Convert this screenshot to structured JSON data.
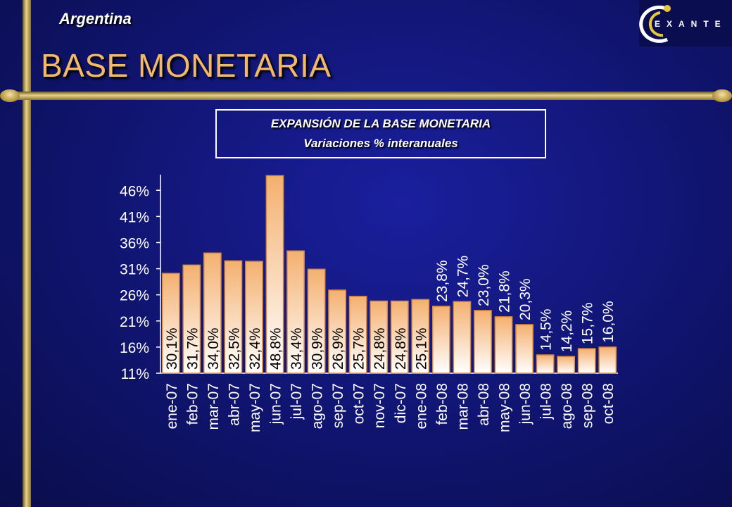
{
  "header": {
    "country": "Argentina",
    "title": "BASE MONETARIA",
    "logo_text": "EXANTE"
  },
  "chart_box": {
    "title": "EXPANSIÓN DE LA BASE MONETARIA",
    "subtitle": "Variaciones % interanuales"
  },
  "colors": {
    "background": "#10146e",
    "gold": "#c9ad5a",
    "title": "#f3b96a",
    "bar_top": "#f4b070",
    "bar_bottom": "#ffffff"
  },
  "chart_data": {
    "type": "bar",
    "categories": [
      "ene-07",
      "feb-07",
      "mar-07",
      "abr-07",
      "may-07",
      "jun-07",
      "jul-07",
      "ago-07",
      "sep-07",
      "oct-07",
      "nov-07",
      "dic-07",
      "ene-08",
      "feb-08",
      "mar-08",
      "abr-08",
      "may-08",
      "jun-08",
      "jul-08",
      "ago-08",
      "sep-08",
      "oct-08"
    ],
    "values": [
      30.1,
      31.7,
      34.0,
      32.5,
      32.4,
      48.8,
      34.4,
      30.9,
      26.9,
      25.7,
      24.8,
      24.8,
      25.1,
      23.8,
      24.7,
      23.0,
      21.8,
      20.3,
      14.5,
      14.2,
      15.7,
      16.0
    ],
    "labels": [
      "30,1%",
      "31,7%",
      "34,0%",
      "32,5%",
      "32,4%",
      "48,8%",
      "34,4%",
      "30,9%",
      "26,9%",
      "25,7%",
      "24,8%",
      "24,8%",
      "25,1%",
      "23,8%",
      "24,7%",
      "23,0%",
      "21,8%",
      "20,3%",
      "14,5%",
      "14,2%",
      "15,7%",
      "16,0%"
    ],
    "yticks": [
      "11%",
      "16%",
      "21%",
      "26%",
      "31%",
      "36%",
      "41%",
      "46%"
    ],
    "ytick_values": [
      11,
      16,
      21,
      26,
      31,
      36,
      41,
      46
    ],
    "ylim": [
      11,
      49
    ],
    "grid": false,
    "legend": "none",
    "xlabel": "",
    "ylabel": ""
  }
}
